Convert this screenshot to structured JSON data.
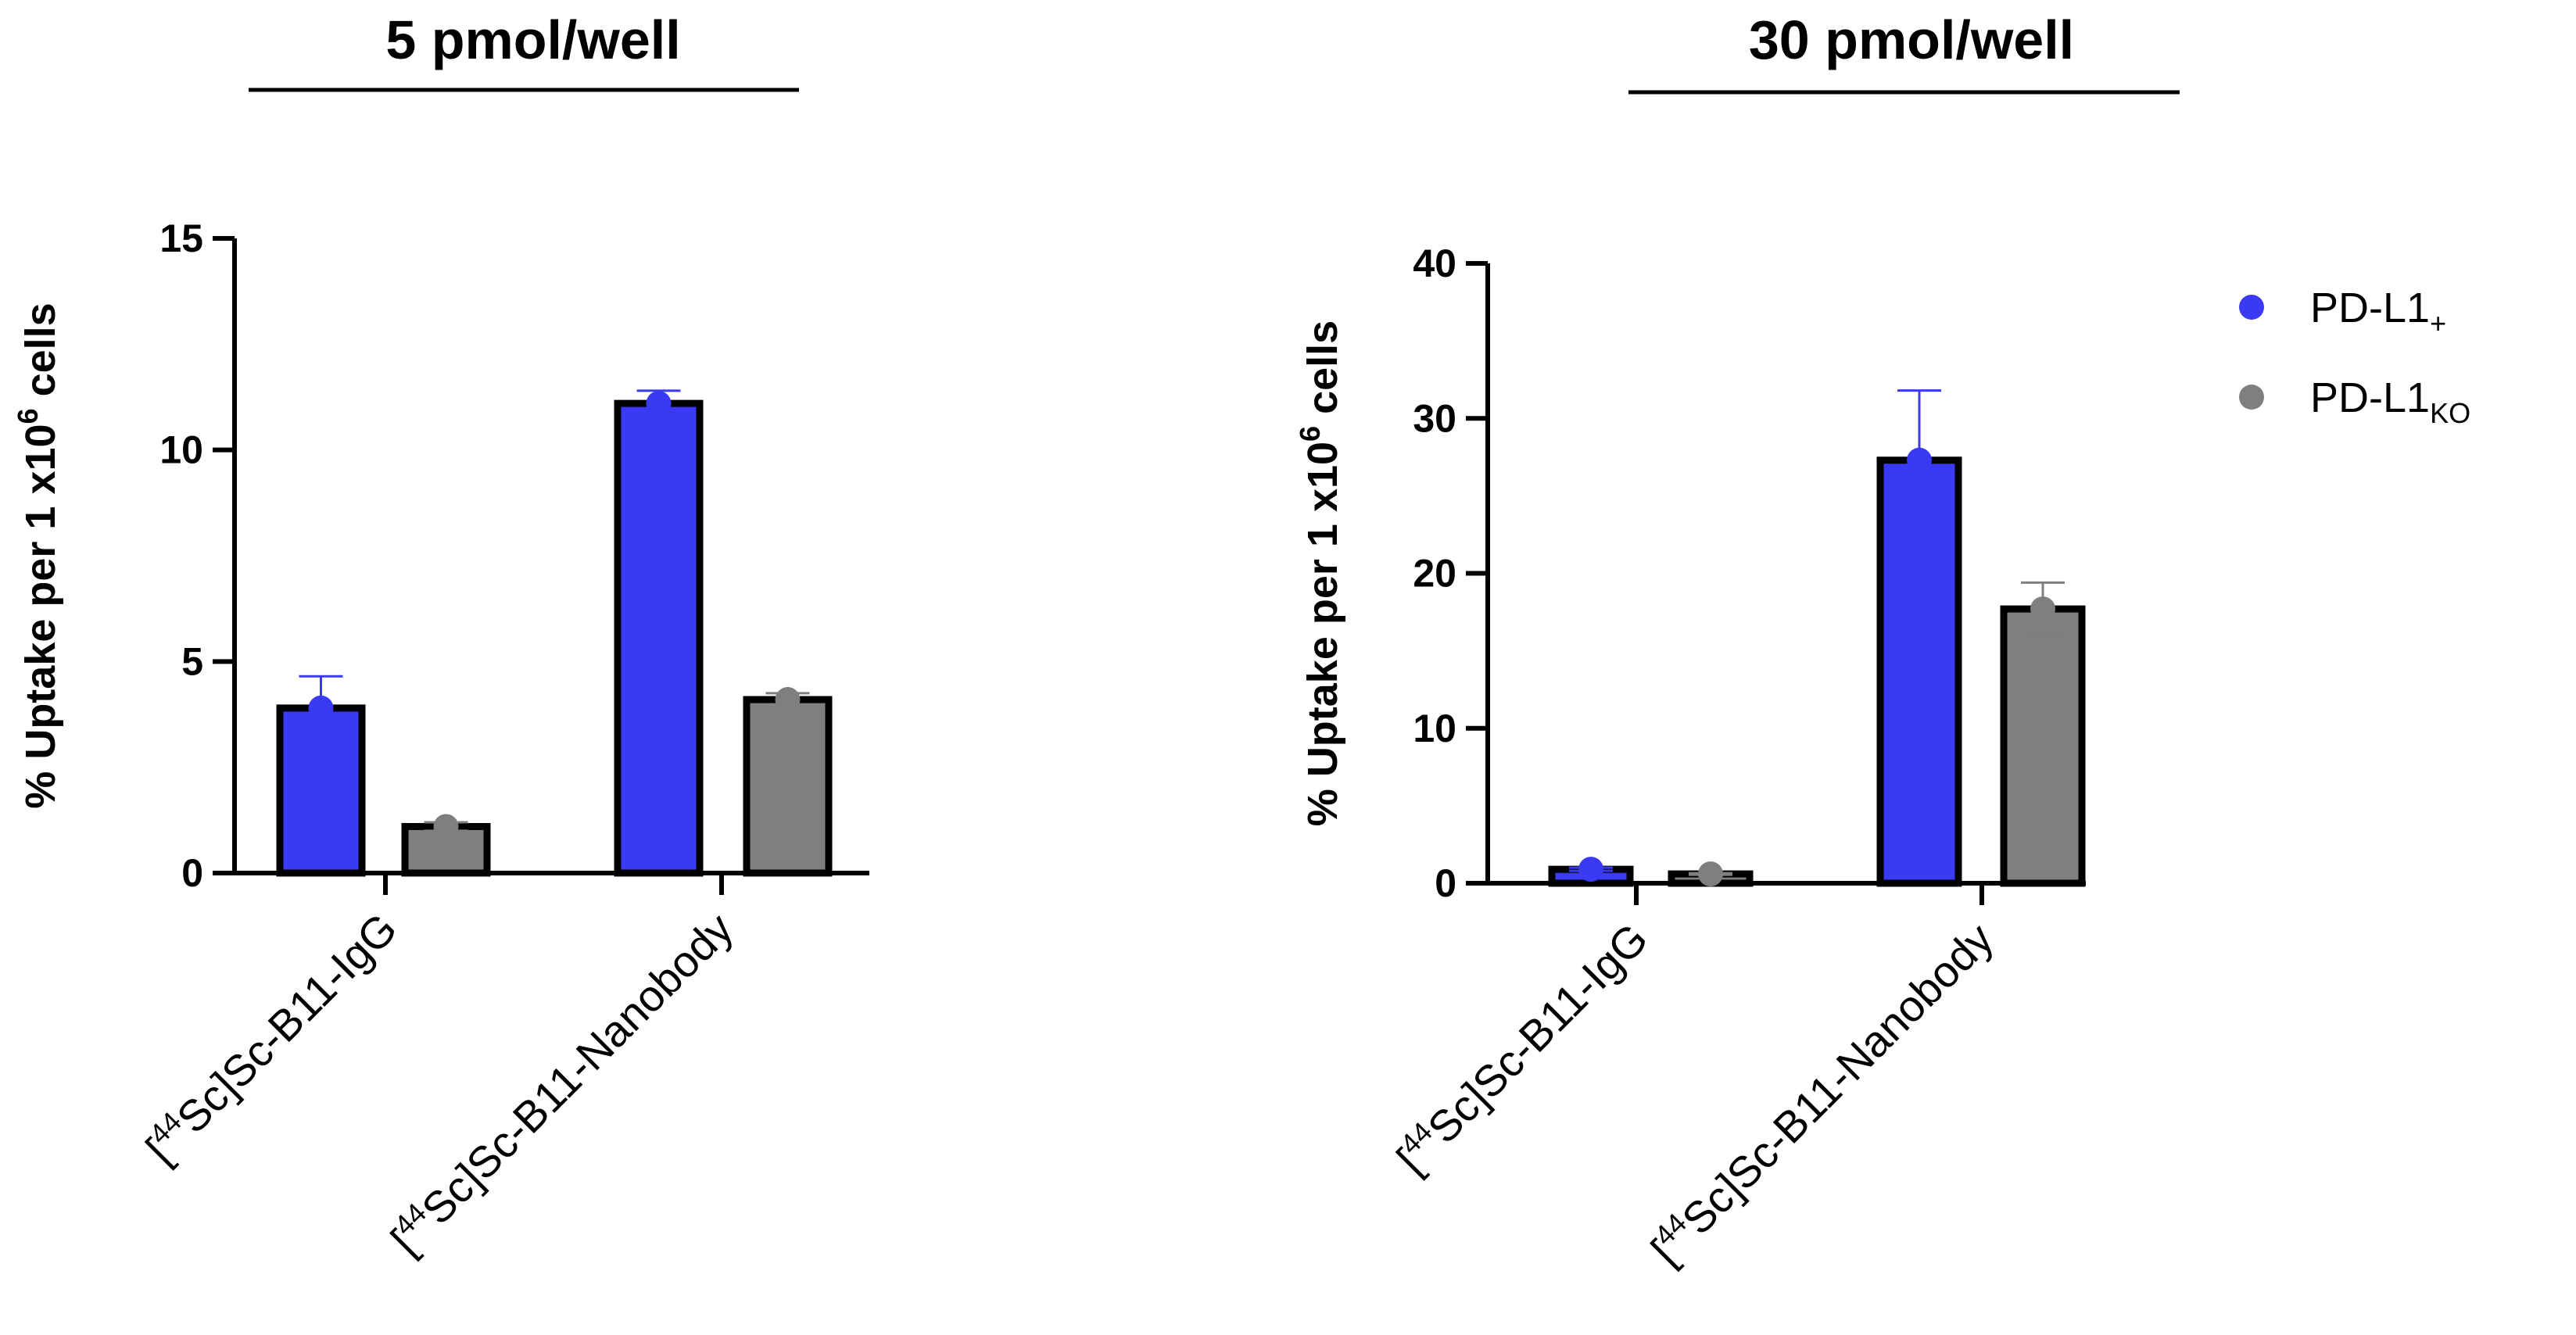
{
  "colors": {
    "pd_l1_pos": "#3a3af5",
    "pd_l1_ko": "#7f7f7f",
    "axis": "#000000",
    "bar_edge": "#000000"
  },
  "legend": {
    "entries": [
      {
        "key": "pd_l1_pos",
        "label": "PD-L1",
        "subscript": "+"
      },
      {
        "key": "pd_l1_ko",
        "label": "PD-L1",
        "subscript": "KO"
      }
    ]
  },
  "chart_data": [
    {
      "type": "bar",
      "title": "5 pmol/well",
      "ylabel": {
        "text": "% Uptake per 1 x10",
        "superscript": "6",
        "suffix": " cells"
      },
      "xlabel": "",
      "ylim": [
        0,
        15
      ],
      "yticks": [
        0,
        5,
        10,
        15
      ],
      "categories": [
        {
          "prefix": "[",
          "superscript": "44",
          "text": "Sc]Sc-B11-IgG"
        },
        {
          "prefix": "[",
          "superscript": "44",
          "text": "Sc]Sc-B11-Nanobody"
        }
      ],
      "series": [
        {
          "name": "PD-L1+",
          "values": [
            3.9,
            11.1
          ],
          "errors": [
            0.75,
            0.3
          ]
        },
        {
          "name": "PD-L1KO",
          "values": [
            1.1,
            4.1
          ],
          "errors": [
            0.1,
            0.15
          ]
        }
      ]
    },
    {
      "type": "bar",
      "title": "30 pmol/well",
      "ylabel": {
        "text": "% Uptake per 1 x10",
        "superscript": "6",
        "suffix": " cells"
      },
      "xlabel": "",
      "ylim": [
        0,
        40
      ],
      "yticks": [
        0,
        10,
        20,
        30,
        40
      ],
      "categories": [
        {
          "prefix": "[",
          "superscript": "44",
          "text": "Sc]Sc-B11-IgG"
        },
        {
          "prefix": "[",
          "superscript": "44",
          "text": "Sc]Sc-B11-Nanobody"
        }
      ],
      "series": [
        {
          "name": "PD-L1+",
          "values": [
            0.9,
            27.3
          ],
          "errors": [
            0.1,
            4.5
          ]
        },
        {
          "name": "PD-L1KO",
          "values": [
            0.6,
            17.7
          ],
          "errors": [
            0.05,
            1.7
          ]
        }
      ]
    }
  ]
}
